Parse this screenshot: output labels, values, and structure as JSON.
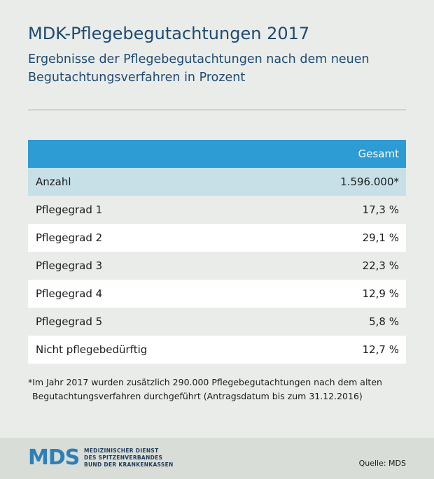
{
  "chart_data": {
    "type": "table",
    "title": "MDK-Pflegebegutachtungen 2017",
    "subtitle": "Ergebnisse der Pflegebegutachtungen nach dem neuen Begutachtungsverfahren in Prozent",
    "column_header": "Gesamt",
    "rows": [
      {
        "label": "Anzahl",
        "value": "1.596.000*"
      },
      {
        "label": "Pflegegrad 1",
        "value": "17,3 %"
      },
      {
        "label": "Pflegegrad 2",
        "value": "29,1 %"
      },
      {
        "label": "Pflegegrad 3",
        "value": "22,3 %"
      },
      {
        "label": "Pflegegrad 4",
        "value": "12,9 %"
      },
      {
        "label": "Pflegegrad 5",
        "value": "5,8 %"
      },
      {
        "label": "Nicht pflegebedürftig",
        "value": "12,7 %"
      }
    ],
    "footnote_line1": "*Im Jahr 2017 wurden zusätzlich 290.000 Pflegebegutachtungen nach dem alten",
    "footnote_line2": "Begutachtungsverfahren durchgeführt (Antragsdatum bis zum 31.12.2016)"
  },
  "footer": {
    "logo_text": "MDS",
    "org_line1": "MEDIZINISCHER DIENST",
    "org_line2": "DES SPITZENVERBANDES",
    "org_line3": "BUND DER KRANKENKASSEN",
    "source": "Quelle: MDS"
  },
  "colors": {
    "header": "#2d9bd4",
    "row_highlight": "#c7e0e8",
    "title": "#1f4a72"
  }
}
